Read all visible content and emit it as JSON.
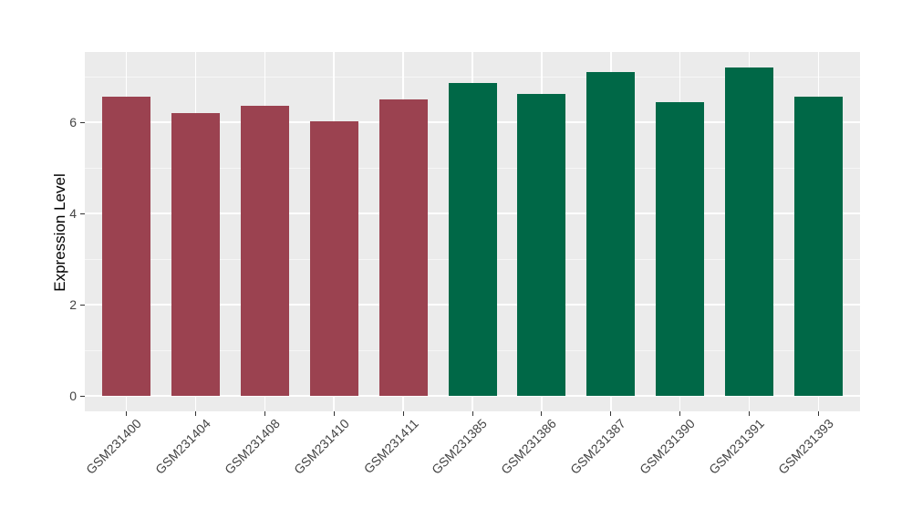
{
  "chart_data": {
    "type": "bar",
    "title": "",
    "xlabel": "",
    "ylabel": "Expression Level",
    "categories": [
      "GSM231400",
      "GSM231404",
      "GSM231408",
      "GSM231410",
      "GSM231411",
      "GSM231385",
      "GSM231386",
      "GSM231387",
      "GSM231390",
      "GSM231391",
      "GSM231393"
    ],
    "values": [
      6.56,
      6.2,
      6.36,
      6.02,
      6.5,
      6.86,
      6.62,
      7.1,
      6.44,
      7.2,
      6.56
    ],
    "bar_colors": [
      "#9B4250",
      "#9B4250",
      "#9B4250",
      "#9B4250",
      "#9B4250",
      "#006847",
      "#006847",
      "#006847",
      "#006847",
      "#006847",
      "#006847"
    ],
    "yticks_major": [
      0,
      2,
      4,
      6
    ],
    "yticks_minor": [
      1,
      3,
      5,
      7
    ],
    "ylim": [
      0,
      7.5
    ],
    "legend": "none",
    "grid": "on",
    "x_label_rotation_deg": 45,
    "panel_background": "#EBEBEB",
    "gridline_color": "#FFFFFF",
    "axis_text_color": "#444444",
    "tick_mark_color": "#333333"
  }
}
